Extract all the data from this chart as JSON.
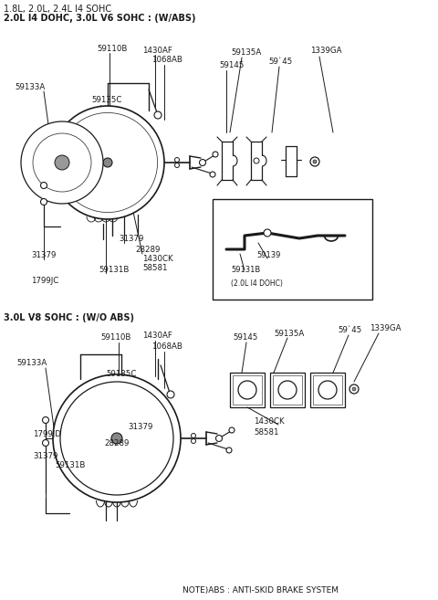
{
  "title1": "1.8L, 2.0L, 2.4L I4 SOHC",
  "title2": "2.0L I4 DOHC, 3.0L V6 SOHC : (W/ABS)",
  "title3": "3.0L V8 SOHC : (W/O ABS)",
  "note": "NOTE)ABS : ANTI-SKID BRAKE SYSTEM",
  "bg_color": "#ffffff",
  "line_color": "#1a1a1a",
  "text_color": "#1a1a1a"
}
